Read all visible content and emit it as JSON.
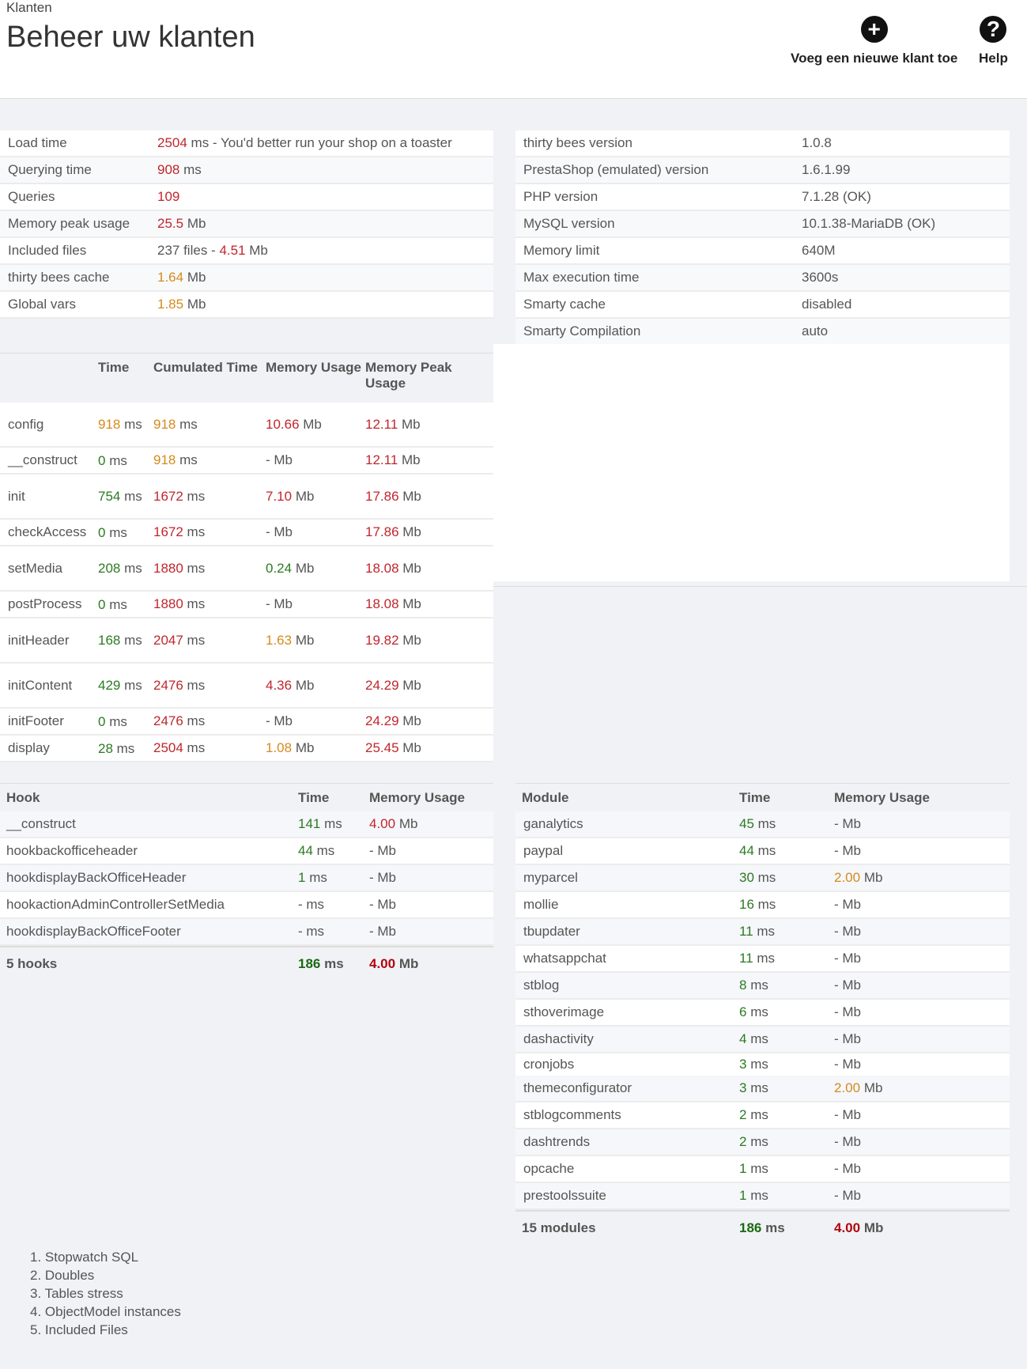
{
  "header": {
    "breadcrumb": "Klanten",
    "title": "Beheer uw klanten",
    "add_label": "Voeg een nieuwe klant toe",
    "help_label": "Help"
  },
  "performance": [
    {
      "key": "Load time",
      "value": "2504",
      "unit": " ms - You'd better run your shop on a toaster",
      "color": "red"
    },
    {
      "key": "Querying time",
      "value": "908",
      "unit": " ms",
      "color": "red"
    },
    {
      "key": "Queries",
      "value": "109",
      "unit": "",
      "color": "red"
    },
    {
      "key": "Memory peak usage",
      "value": "25.5",
      "unit": " Mb",
      "color": "red"
    },
    {
      "key": "Included files",
      "prefix": "237 files - ",
      "value": "4.51",
      "unit": " Mb",
      "color": "red"
    },
    {
      "key": "thirty bees cache",
      "value": "1.64",
      "unit": " Mb",
      "color": "orange"
    },
    {
      "key": "Global vars",
      "value": "1.85",
      "unit": " Mb",
      "color": "orange"
    }
  ],
  "environment": [
    {
      "key": "thirty bees version",
      "value": "1.0.8",
      "color": "plain"
    },
    {
      "key": "PrestaShop (emulated) version",
      "value": "1.6.1.99",
      "color": "plain"
    },
    {
      "key": "PHP version",
      "value": "7.1.28 (OK)",
      "color": "green"
    },
    {
      "key": "MySQL version",
      "value": "10.1.38-MariaDB (OK)",
      "color": "green"
    },
    {
      "key": "Memory limit",
      "value": "640M",
      "color": "plain"
    },
    {
      "key": "Max execution time",
      "value": "3600s",
      "color": "plain"
    },
    {
      "key": "Smarty cache",
      "value": "disabled",
      "color": "red"
    },
    {
      "key": "Smarty Compilation",
      "value": "auto",
      "color": "orange"
    }
  ],
  "steps": {
    "headers": {
      "time": "Time",
      "cumulated": "Cumulated Time",
      "memory": "Memory Usage",
      "peak": "Memory Peak Usage"
    },
    "rows": [
      {
        "name": "config",
        "time": "918",
        "time_color": "orange",
        "cum": "918",
        "cum_color": "orange",
        "mem": "10.66",
        "mem_color": "red",
        "peak": "12.11",
        "tall": true
      },
      {
        "name": "__construct",
        "time": "0",
        "time_color": "green",
        "cum": "918",
        "cum_color": "orange",
        "mem": "-",
        "mem_color": "plain",
        "peak": "12.11",
        "tall": false
      },
      {
        "name": "init",
        "time": "754",
        "time_color": "green",
        "cum": "1672",
        "cum_color": "red",
        "mem": "7.10",
        "mem_color": "red",
        "peak": "17.86",
        "tall": true
      },
      {
        "name": "checkAccess",
        "time": "0",
        "time_color": "green",
        "cum": "1672",
        "cum_color": "red",
        "mem": "-",
        "mem_color": "plain",
        "peak": "17.86",
        "tall": false
      },
      {
        "name": "setMedia",
        "time": "208",
        "time_color": "green",
        "cum": "1880",
        "cum_color": "red",
        "mem": "0.24",
        "mem_color": "green",
        "peak": "18.08",
        "tall": true
      },
      {
        "name": "postProcess",
        "time": "0",
        "time_color": "green",
        "cum": "1880",
        "cum_color": "red",
        "mem": "-",
        "mem_color": "plain",
        "peak": "18.08",
        "tall": false
      },
      {
        "name": "initHeader",
        "time": "168",
        "time_color": "green",
        "cum": "2047",
        "cum_color": "red",
        "mem": "1.63",
        "mem_color": "orange",
        "peak": "19.82",
        "tall": true
      },
      {
        "name": "initContent",
        "time": "429",
        "time_color": "green",
        "cum": "2476",
        "cum_color": "red",
        "mem": "4.36",
        "mem_color": "red",
        "peak": "24.29",
        "tall": true
      },
      {
        "name": "initFooter",
        "time": "0",
        "time_color": "green",
        "cum": "2476",
        "cum_color": "red",
        "mem": "-",
        "mem_color": "plain",
        "peak": "24.29",
        "tall": false
      },
      {
        "name": "display",
        "time": "28",
        "time_color": "green",
        "cum": "2504",
        "cum_color": "red",
        "mem": "1.08",
        "mem_color": "orange",
        "peak": "25.45",
        "tall": false
      }
    ]
  },
  "hooks": {
    "headers": {
      "name": "Hook",
      "time": "Time",
      "memory": "Memory Usage"
    },
    "rows": [
      {
        "name": "__construct",
        "time": "141",
        "time_color": "green",
        "mem": "4.00",
        "mem_color": "red"
      },
      {
        "name": "hookbackofficeheader",
        "time": "44",
        "time_color": "green",
        "mem": "-",
        "mem_color": "plain"
      },
      {
        "name": "hookdisplayBackOfficeHeader",
        "time": "1",
        "time_color": "green",
        "mem": "-",
        "mem_color": "plain"
      },
      {
        "name": "hookactionAdminControllerSetMedia",
        "time": "-",
        "time_color": "plain",
        "mem": "-",
        "mem_color": "plain"
      },
      {
        "name": "hookdisplayBackOfficeFooter",
        "time": "-",
        "time_color": "plain",
        "mem": "-",
        "mem_color": "plain"
      }
    ],
    "total": {
      "label": "5 hooks",
      "time": "186",
      "mem": "4.00"
    }
  },
  "modules": {
    "headers": {
      "name": "Module",
      "time": "Time",
      "memory": "Memory Usage"
    },
    "rows": [
      {
        "name": "ganalytics",
        "time": "45",
        "mem": "-",
        "mem_color": "plain"
      },
      {
        "name": "paypal",
        "time": "44",
        "mem": "-",
        "mem_color": "plain"
      },
      {
        "name": "myparcel",
        "time": "30",
        "mem": "2.00",
        "mem_color": "orange"
      },
      {
        "name": "mollie",
        "time": "16",
        "mem": "-",
        "mem_color": "plain"
      },
      {
        "name": "tbupdater",
        "time": "11",
        "mem": "-",
        "mem_color": "plain"
      },
      {
        "name": "whatsappchat",
        "time": "11",
        "mem": "-",
        "mem_color": "plain"
      },
      {
        "name": "stblog",
        "time": "8",
        "mem": "-",
        "mem_color": "plain"
      },
      {
        "name": "sthoverimage",
        "time": "6",
        "mem": "-",
        "mem_color": "plain"
      },
      {
        "name": "dashactivity",
        "time": "4",
        "mem": "-",
        "mem_color": "plain"
      },
      {
        "name": "cronjobs",
        "time": "3",
        "mem": "-",
        "mem_color": "plain"
      },
      {
        "name": "themeconfigurator",
        "time": "3",
        "mem": "2.00",
        "mem_color": "orange"
      },
      {
        "name": "stblogcomments",
        "time": "2",
        "mem": "-",
        "mem_color": "plain"
      },
      {
        "name": "dashtrends",
        "time": "2",
        "mem": "-",
        "mem_color": "plain"
      },
      {
        "name": "opcache",
        "time": "1",
        "mem": "-",
        "mem_color": "plain"
      },
      {
        "name": "prestoolssuite",
        "time": "1",
        "mem": "-",
        "mem_color": "plain"
      }
    ],
    "total": {
      "label": "15 modules",
      "time": "186",
      "mem": "4.00"
    }
  },
  "links": [
    "1. Stopwatch SQL",
    "2. Doubles",
    "3. Tables stress",
    "4. ObjectModel instances",
    "5. Included Files"
  ],
  "units": {
    "ms": " ms",
    "mb": " Mb"
  },
  "colors": {
    "red": "#c0262c",
    "orange": "#d68a1e",
    "green": "#2c7a22",
    "total_green": "#1a6a12",
    "total_red": "#b1060d"
  }
}
